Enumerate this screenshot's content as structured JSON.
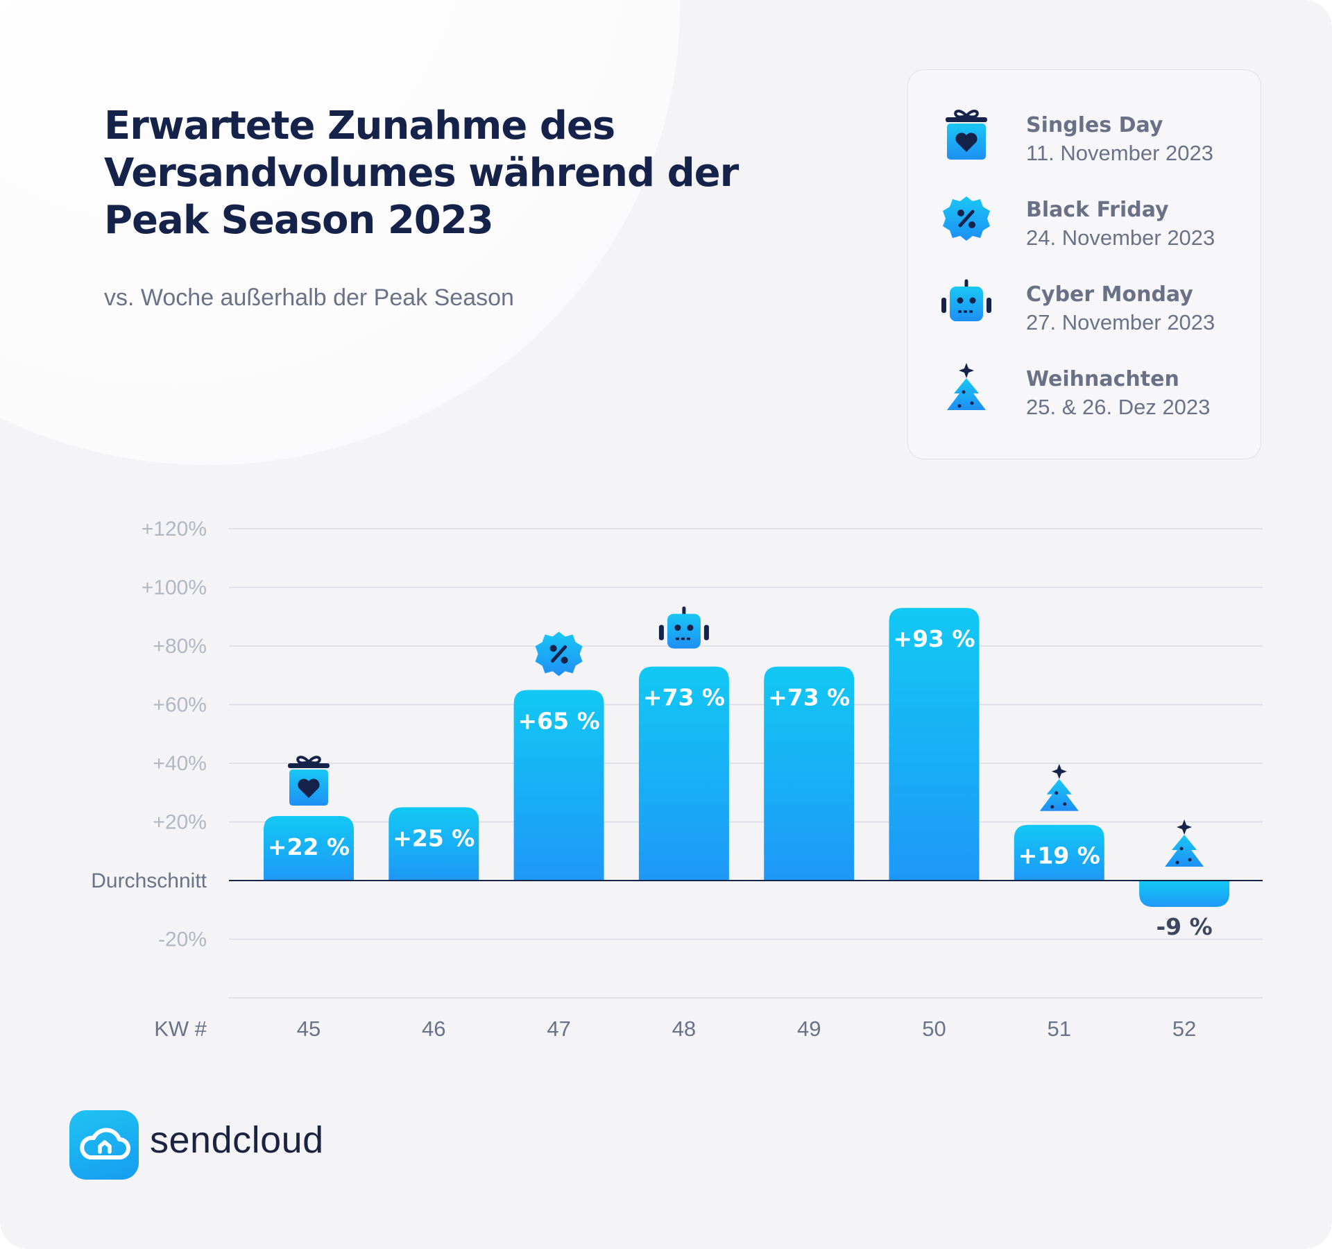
{
  "header": {
    "title": "Erwartete Zunahme des Versandvolumes während der Peak Season 2023",
    "subtitle": "vs. Woche außerhalb der Peak Season"
  },
  "legend": [
    {
      "name": "Singles Day",
      "date": "11. November 2023",
      "icon": "gift-heart-icon"
    },
    {
      "name": "Black Friday",
      "date": "24. November 2023",
      "icon": "percent-badge-icon"
    },
    {
      "name": "Cyber Monday",
      "date": "27. November 2023",
      "icon": "robot-icon"
    },
    {
      "name": "Weihnachten",
      "date": "25. & 26. Dez 2023",
      "icon": "christmas-tree-icon"
    }
  ],
  "colors": {
    "bar_top": "#12c8f4",
    "bar_bottom": "#1e98f7",
    "title": "#15224a",
    "grid": "#d9dbe2",
    "axis_text": "#b3b7c4"
  },
  "chart_data": {
    "type": "bar",
    "xlabel": "KW #",
    "categories": [
      "45",
      "46",
      "47",
      "48",
      "49",
      "50",
      "51",
      "52"
    ],
    "values": [
      22,
      25,
      65,
      73,
      73,
      93,
      19,
      -9
    ],
    "value_labels": [
      "+22 %",
      "+25 %",
      "+65 %",
      "+73 %",
      "+73 %",
      "+93 %",
      "+19 %",
      "-9 %"
    ],
    "yticks": [
      {
        "value": 120,
        "label": "+120%"
      },
      {
        "value": 100,
        "label": "+100%"
      },
      {
        "value": 80,
        "label": "+80%"
      },
      {
        "value": 60,
        "label": "+60%"
      },
      {
        "value": 40,
        "label": "+40%"
      },
      {
        "value": 20,
        "label": "+20%"
      },
      {
        "value": 0,
        "label": "Durchschnitt"
      },
      {
        "value": -20,
        "label": "-20%"
      },
      {
        "value": -40,
        "label": ""
      }
    ],
    "ylim": [
      -40,
      120
    ],
    "grid": true,
    "event_markers": [
      {
        "category": "45",
        "icon": "gift-heart-icon"
      },
      {
        "category": "47",
        "icon": "percent-badge-icon"
      },
      {
        "category": "48",
        "icon": "robot-icon"
      },
      {
        "category": "51",
        "icon": "christmas-tree-icon"
      },
      {
        "category": "52",
        "icon": "christmas-tree-icon"
      }
    ]
  },
  "brand": {
    "name": "sendcloud",
    "icon": "cloud-home-icon"
  }
}
